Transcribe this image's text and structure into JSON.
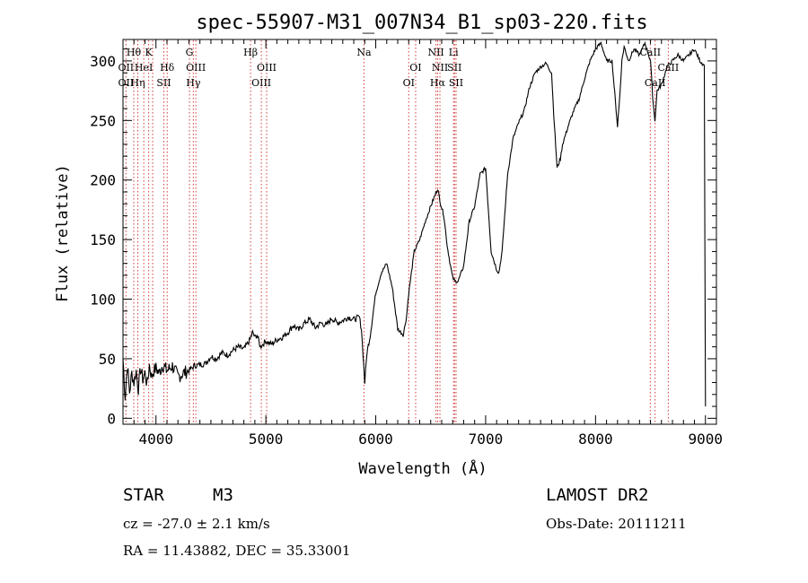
{
  "chart_data": {
    "type": "line",
    "title": "spec-55907-M31_007N34_B1_sp03-220.fits",
    "xlabel": "Wavelength (Å)",
    "ylabel": "Flux (relative)",
    "xlim": [
      3700,
      9100
    ],
    "ylim": [
      -5,
      318
    ],
    "xticks": [
      4000,
      5000,
      6000,
      7000,
      8000,
      9000
    ],
    "yticks": [
      0,
      50,
      100,
      150,
      200,
      250,
      300
    ],
    "series": [
      {
        "x": [
          3700,
          3720,
          3740,
          3760,
          3780,
          3800,
          3820,
          3840,
          3860,
          3880,
          3900,
          3920,
          3940,
          3960,
          3980,
          4000,
          4030,
          4060,
          4100,
          4150,
          4200,
          4250,
          4300,
          4350,
          4400,
          4450,
          4500,
          4550,
          4600,
          4650,
          4700,
          4750,
          4800,
          4850,
          4880,
          4900,
          4920,
          4950,
          5000,
          5050,
          5100,
          5150,
          5200,
          5250,
          5300,
          5350,
          5400,
          5450,
          5500,
          5550,
          5600,
          5650,
          5700,
          5750,
          5800,
          5850,
          5870,
          5890,
          5900,
          5920,
          5950,
          6000,
          6050,
          6100,
          6150,
          6200,
          6250,
          6280,
          6300,
          6350,
          6400,
          6450,
          6500,
          6530,
          6563,
          6590,
          6620,
          6650,
          6680,
          6700,
          6720,
          6750,
          6800,
          6850,
          6900,
          6950,
          7000,
          7050,
          7100,
          7120,
          7150,
          7200,
          7250,
          7300,
          7350,
          7400,
          7450,
          7500,
          7550,
          7600,
          7620,
          7650,
          7680,
          7700,
          7750,
          7800,
          7850,
          7900,
          7950,
          8000,
          8050,
          8100,
          8150,
          8200,
          8220,
          8240,
          8260,
          8300,
          8350,
          8400,
          8450,
          8500,
          8520,
          8540,
          8560,
          8600,
          8650,
          8700,
          8750,
          8800,
          8850,
          8900,
          8950,
          8990,
          9000
        ],
        "y": [
          50,
          18,
          45,
          22,
          38,
          30,
          40,
          25,
          42,
          33,
          38,
          28,
          45,
          35,
          40,
          42,
          38,
          45,
          40,
          44,
          35,
          38,
          40,
          44,
          45,
          46,
          52,
          50,
          55,
          53,
          57,
          60,
          58,
          65,
          72,
          68,
          70,
          60,
          65,
          62,
          66,
          68,
          72,
          78,
          74,
          80,
          83,
          76,
          80,
          78,
          84,
          80,
          82,
          85,
          83,
          85,
          75,
          45,
          30,
          55,
          70,
          105,
          122,
          130,
          110,
          75,
          70,
          85,
          105,
          140,
          150,
          165,
          178,
          185,
          193,
          180,
          170,
          145,
          128,
          118,
          115,
          115,
          128,
          165,
          178,
          205,
          210,
          140,
          125,
          122,
          140,
          205,
          235,
          248,
          258,
          278,
          290,
          295,
          298,
          290,
          255,
          210,
          218,
          230,
          245,
          258,
          268,
          285,
          300,
          310,
          315,
          300,
          300,
          245,
          270,
          300,
          312,
          300,
          310,
          305,
          315,
          300,
          270,
          250,
          275,
          280,
          295,
          300,
          305,
          300,
          305,
          310,
          300,
          296,
          10
        ]
      }
    ],
    "annotations": [
      {
        "label": "Hθ",
        "x": 3798,
        "row": 1
      },
      {
        "label": "OII",
        "x": 3727,
        "row": 2
      },
      {
        "label": "OII",
        "x": 3727,
        "row": 3
      },
      {
        "label": "Hη",
        "x": 3835,
        "row": 3
      },
      {
        "label": "HeI",
        "x": 3889,
        "row": 2
      },
      {
        "label": "K",
        "x": 3934,
        "row": 1
      },
      {
        "label": "Hδ",
        "x": 4102,
        "row": 2
      },
      {
        "label": "SII",
        "x": 4072,
        "row": 3
      },
      {
        "label": "G",
        "x": 4305,
        "row": 1
      },
      {
        "label": "OIII",
        "x": 4363,
        "row": 2
      },
      {
        "label": "Hγ",
        "x": 4340,
        "row": 3
      },
      {
        "label": "Hβ",
        "x": 4861,
        "row": 1
      },
      {
        "label": "OIII",
        "x": 5007,
        "row": 2
      },
      {
        "label": "OIII",
        "x": 4959,
        "row": 3
      },
      {
        "label": "Na",
        "x": 5893,
        "row": 1
      },
      {
        "label": "OI",
        "x": 6363,
        "row": 2
      },
      {
        "label": "OI",
        "x": 6300,
        "row": 3
      },
      {
        "label": "NII",
        "x": 6548,
        "row": 1
      },
      {
        "label": "Li",
        "x": 6708,
        "row": 1
      },
      {
        "label": "NII",
        "x": 6584,
        "row": 2
      },
      {
        "label": "SII",
        "x": 6717,
        "row": 2
      },
      {
        "label": "Hα",
        "x": 6563,
        "row": 3
      },
      {
        "label": "SII",
        "x": 6731,
        "row": 3
      },
      {
        "label": "CaII",
        "x": 8498,
        "row": 1
      },
      {
        "label": "CaII",
        "x": 8662,
        "row": 2
      },
      {
        "label": "CaII",
        "x": 8542,
        "row": 3
      }
    ],
    "line_marks": [
      3727,
      3798,
      3835,
      3889,
      3934,
      3970,
      4072,
      4102,
      4305,
      4340,
      4363,
      4861,
      4959,
      5007,
      5893,
      6300,
      6363,
      6548,
      6563,
      6584,
      6708,
      6717,
      6731,
      8498,
      8542,
      8662
    ],
    "grid": false
  },
  "info": {
    "object_class": "STAR",
    "subclass": "M3",
    "survey": "LAMOST DR2",
    "redshift": "cz = -27.0 ± 2.1 km/s",
    "obs_date": "Obs-Date: 20111211",
    "coords": "RA =  11.43882, DEC =  35.33001"
  }
}
